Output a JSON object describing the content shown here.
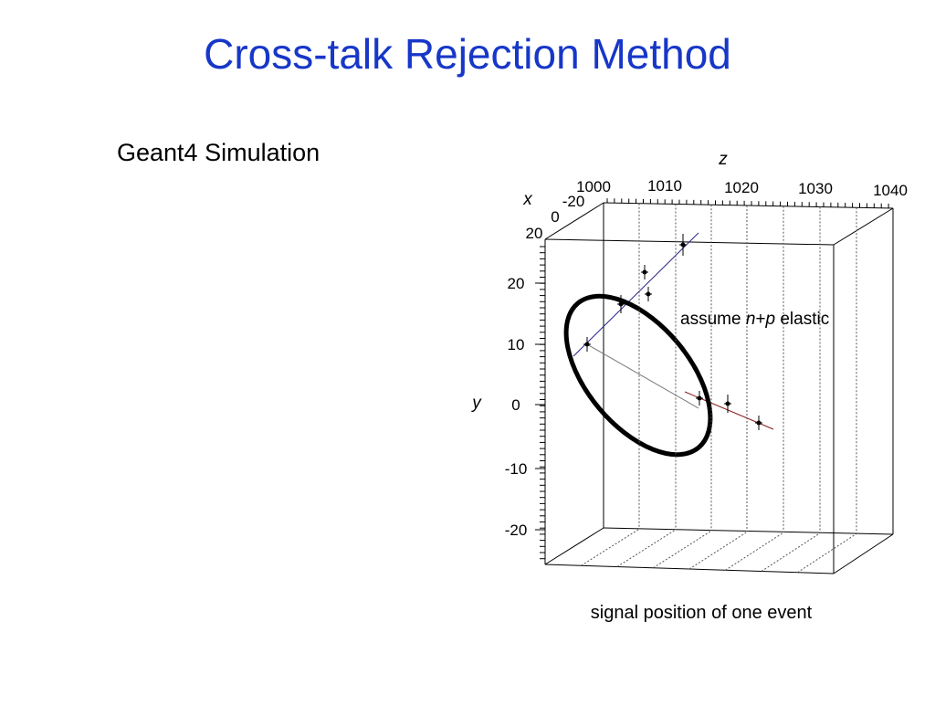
{
  "title": "Cross-talk Rejection Method",
  "subtitle": "Geant4 Simulation",
  "plot": {
    "z_label": "z",
    "x_label": "x",
    "y_label": "y",
    "z_ticks": [
      "1000",
      "1010",
      "1020",
      "1030",
      "1040"
    ],
    "x_ticks": [
      "-20",
      "0",
      "20"
    ],
    "y_ticks": [
      "20",
      "10",
      "0",
      "-10",
      "-20"
    ],
    "annotation": {
      "pre": "assume ",
      "n": "n",
      "plus": "+",
      "p": "p",
      "post": " elastic"
    }
  },
  "caption": "signal position of one event"
}
